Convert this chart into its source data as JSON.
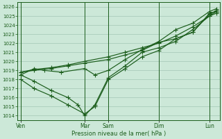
{
  "background_color": "#cce8d8",
  "grid_color": "#aaccbb",
  "line_color": "#1a5c1a",
  "xlabel": "Pression niveau de la mer( hPa )",
  "ylim": [
    1013.5,
    1026.5
  ],
  "yticks": [
    1014,
    1015,
    1016,
    1017,
    1018,
    1019,
    1020,
    1021,
    1022,
    1023,
    1024,
    1025,
    1026
  ],
  "xlim": [
    0,
    30
  ],
  "day_labels": [
    "Ven",
    "Mar",
    "Sam",
    "Dim",
    "Lun"
  ],
  "day_positions": [
    0.5,
    10.0,
    13.5,
    21.0,
    28.5
  ],
  "vline_positions": [
    0.5,
    10.0,
    13.5,
    21.0,
    28.5
  ],
  "lines": [
    {
      "x": [
        0.5,
        2.5,
        5.0,
        7.5,
        10.0,
        13.5,
        16.0,
        18.5,
        21.0,
        23.5,
        26.0,
        28.5,
        29.5
      ],
      "y": [
        1018.8,
        1019.0,
        1019.2,
        1019.5,
        1019.8,
        1020.2,
        1020.7,
        1021.2,
        1022.1,
        1022.5,
        1023.2,
        1025.3,
        1025.5
      ],
      "marker": true
    },
    {
      "x": [
        0.5,
        2.5,
        5.0,
        7.5,
        10.0,
        11.5,
        13.5,
        16.0,
        18.5,
        21.0,
        23.5,
        26.0,
        28.5,
        29.5
      ],
      "y": [
        1018.0,
        1017.0,
        1016.2,
        1015.2,
        1014.2,
        1015.0,
        1018.0,
        1019.2,
        1020.5,
        1021.2,
        1022.5,
        1023.2,
        1025.2,
        1025.6
      ],
      "marker": true
    },
    {
      "x": [
        0.5,
        2.5,
        5.0,
        7.5,
        10.0,
        13.5,
        16.0,
        18.5,
        21.0,
        23.5,
        26.0,
        28.5,
        29.5
      ],
      "y": [
        1018.8,
        1019.1,
        1019.3,
        1019.6,
        1020.0,
        1020.5,
        1021.0,
        1021.5,
        1022.0,
        1022.8,
        1023.8,
        1025.0,
        1025.3
      ],
      "marker": true
    },
    {
      "x": [
        0.5,
        2.5,
        4.0,
        6.5,
        10.0,
        11.5,
        13.5,
        16.0,
        18.5,
        21.0,
        23.5,
        26.0,
        28.5,
        29.5
      ],
      "y": [
        1018.5,
        1019.2,
        1019.0,
        1018.8,
        1019.2,
        1018.5,
        1019.0,
        1020.2,
        1021.3,
        1022.2,
        1023.5,
        1024.2,
        1025.5,
        1025.8
      ],
      "marker": true
    },
    {
      "x": [
        0.5,
        2.5,
        5.0,
        7.5,
        9.0,
        10.0,
        11.5,
        13.5,
        16.0,
        18.5,
        21.0,
        23.5,
        26.0,
        28.5,
        29.5
      ],
      "y": [
        1018.5,
        1017.8,
        1016.8,
        1016.0,
        1015.2,
        1014.0,
        1015.2,
        1018.2,
        1019.5,
        1021.0,
        1021.5,
        1022.2,
        1023.5,
        1025.0,
        1025.5
      ],
      "marker": true
    }
  ],
  "marker_style": "+",
  "marker_size": 4.0,
  "linewidth": 0.85
}
